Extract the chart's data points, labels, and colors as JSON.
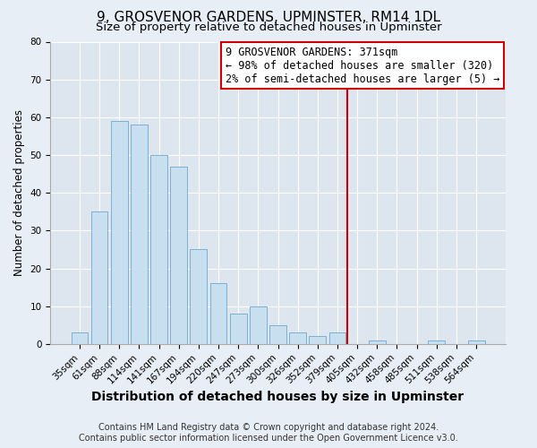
{
  "title": "9, GROSVENOR GARDENS, UPMINSTER, RM14 1DL",
  "subtitle": "Size of property relative to detached houses in Upminster",
  "xlabel": "Distribution of detached houses by size in Upminster",
  "ylabel": "Number of detached properties",
  "bar_labels": [
    "35sqm",
    "61sqm",
    "88sqm",
    "114sqm",
    "141sqm",
    "167sqm",
    "194sqm",
    "220sqm",
    "247sqm",
    "273sqm",
    "300sqm",
    "326sqm",
    "352sqm",
    "379sqm",
    "405sqm",
    "432sqm",
    "458sqm",
    "485sqm",
    "511sqm",
    "538sqm",
    "564sqm"
  ],
  "bar_heights": [
    3,
    35,
    59,
    58,
    50,
    47,
    25,
    16,
    8,
    10,
    5,
    3,
    2,
    3,
    0,
    1,
    0,
    0,
    1,
    0,
    1
  ],
  "bar_color": "#c8dff0",
  "bar_edge_color": "#7ab0d4",
  "vline_x": 13.5,
  "vline_color": "#cc0000",
  "annotation_line1": "9 GROSVENOR GARDENS: 371sqm",
  "annotation_line2": "← 98% of detached houses are smaller (320)",
  "annotation_line3": "2% of semi-detached houses are larger (5) →",
  "annotation_box_color": "#ffffff",
  "annotation_box_edge": "#cc0000",
  "ylim": [
    0,
    80
  ],
  "yticks": [
    0,
    10,
    20,
    30,
    40,
    50,
    60,
    70,
    80
  ],
  "footer_line1": "Contains HM Land Registry data © Crown copyright and database right 2024.",
  "footer_line2": "Contains public sector information licensed under the Open Government Licence v3.0.",
  "background_color": "#e8eef5",
  "plot_bg_color": "#dde6ef",
  "grid_color": "#ffffff",
  "title_fontsize": 11,
  "subtitle_fontsize": 9.5,
  "xlabel_fontsize": 10,
  "ylabel_fontsize": 8.5,
  "tick_fontsize": 7.5,
  "footer_fontsize": 7,
  "annotation_fontsize": 8.5
}
